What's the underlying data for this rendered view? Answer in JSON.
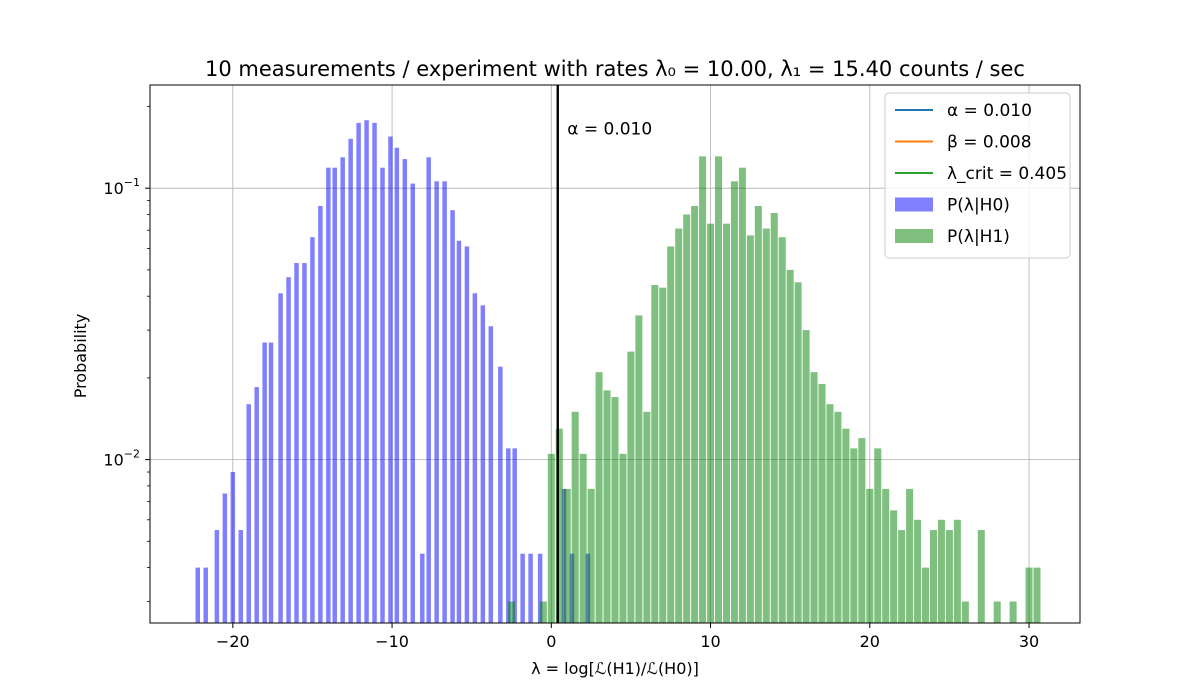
{
  "chart_data": {
    "type": "bar",
    "title": "10 measurements / experiment with rates λ₀ = 10.00, λ₁ = 15.40 counts / sec",
    "xlabel": "λ = log[ℒ(H1)/ℒ(H0)]",
    "ylabel": "Probability",
    "yscale": "log",
    "xlim": [
      -25.2,
      33.2
    ],
    "ylim": [
      0.0025,
      0.24
    ],
    "x_ticks": [
      {
        "value": -20,
        "label": "−20"
      },
      {
        "value": -10,
        "label": "−10"
      },
      {
        "value": 0,
        "label": "0"
      },
      {
        "value": 10,
        "label": "10"
      },
      {
        "value": 20,
        "label": "20"
      },
      {
        "value": 30,
        "label": "30"
      }
    ],
    "y_ticks": [
      {
        "value": 0.01,
        "base": "10",
        "exp": "−2"
      },
      {
        "value": 0.1,
        "base": "10",
        "exp": "−1"
      }
    ],
    "grid": true,
    "legend_position": "upper right",
    "legend": [
      {
        "label": "α = 0.010",
        "kind": "line",
        "color": "#1f77b4"
      },
      {
        "label": "β = 0.008",
        "kind": "line",
        "color": "#ff7f0e"
      },
      {
        "label": "λ_crit = 0.405",
        "kind": "line",
        "color": "#2ca02c"
      },
      {
        "label": "P(λ|H0)",
        "kind": "patch",
        "color": "#0000ff"
      },
      {
        "label": "P(λ|H1)",
        "kind": "patch",
        "color": "#008000"
      }
    ],
    "annotations": [
      {
        "text": "α = 0.010",
        "x": 0.5,
        "y": 0.155
      }
    ],
    "critical_line": {
      "x": 0.405,
      "color": "#000000"
    },
    "series": [
      {
        "name": "P(λ|H0)",
        "color": "#0000ff",
        "opacity": 0.5,
        "bar_width": 0.28,
        "points": [
          [
            -22.2,
            0.004
          ],
          [
            -21.7,
            0.004
          ],
          [
            -21.0,
            0.0055
          ],
          [
            -20.5,
            0.0075
          ],
          [
            -20.0,
            0.009
          ],
          [
            -19.5,
            0.0055
          ],
          [
            -19.0,
            0.016
          ],
          [
            -18.5,
            0.0185
          ],
          [
            -18.0,
            0.027
          ],
          [
            -17.6,
            0.027
          ],
          [
            -17.0,
            0.041
          ],
          [
            -16.5,
            0.047
          ],
          [
            -16.0,
            0.053
          ],
          [
            -15.5,
            0.053
          ],
          [
            -15.0,
            0.066
          ],
          [
            -14.5,
            0.086
          ],
          [
            -14.0,
            0.119
          ],
          [
            -13.6,
            0.119
          ],
          [
            -13.1,
            0.13
          ],
          [
            -12.6,
            0.152
          ],
          [
            -12.1,
            0.174
          ],
          [
            -11.6,
            0.178
          ],
          [
            -11.1,
            0.174
          ],
          [
            -10.6,
            0.119
          ],
          [
            -10.1,
            0.155
          ],
          [
            -9.7,
            0.141
          ],
          [
            -9.2,
            0.128
          ],
          [
            -8.7,
            0.104
          ],
          [
            -8.1,
            0.0045
          ],
          [
            -7.7,
            0.13
          ],
          [
            -7.2,
            0.106
          ],
          [
            -6.7,
            0.106
          ],
          [
            -6.2,
            0.083
          ],
          [
            -5.8,
            0.064
          ],
          [
            -5.3,
            0.061
          ],
          [
            -4.8,
            0.041
          ],
          [
            -4.3,
            0.037
          ],
          [
            -3.8,
            0.031
          ],
          [
            -3.2,
            0.022
          ],
          [
            -2.7,
            0.011
          ],
          [
            -2.3,
            0.011
          ],
          [
            -1.8,
            0.0045
          ],
          [
            -1.3,
            0.0045
          ],
          [
            -0.7,
            0.0045
          ],
          [
            0.8,
            0.0078
          ],
          [
            1.3,
            0.0045
          ],
          [
            2.3,
            0.0045
          ]
        ]
      },
      {
        "name": "P(λ|H1)",
        "color": "#008000",
        "opacity": 0.5,
        "bar_width": 0.44,
        "points": [
          [
            -2.5,
            0.003
          ],
          [
            -0.5,
            0.003
          ],
          [
            0.0,
            0.0105
          ],
          [
            0.5,
            0.013
          ],
          [
            1.0,
            0.0078
          ],
          [
            1.5,
            0.015
          ],
          [
            2.0,
            0.0105
          ],
          [
            2.5,
            0.0078
          ],
          [
            3.0,
            0.021
          ],
          [
            3.5,
            0.018
          ],
          [
            4.0,
            0.017
          ],
          [
            4.5,
            0.0105
          ],
          [
            5.0,
            0.025
          ],
          [
            5.5,
            0.034
          ],
          [
            6.0,
            0.015
          ],
          [
            6.5,
            0.044
          ],
          [
            7.0,
            0.043
          ],
          [
            7.5,
            0.061
          ],
          [
            8.0,
            0.071
          ],
          [
            8.5,
            0.08
          ],
          [
            9.0,
            0.086
          ],
          [
            9.5,
            0.131
          ],
          [
            10.0,
            0.074
          ],
          [
            10.5,
            0.131
          ],
          [
            11.0,
            0.074
          ],
          [
            11.5,
            0.106
          ],
          [
            12.0,
            0.119
          ],
          [
            12.5,
            0.067
          ],
          [
            13.0,
            0.086
          ],
          [
            13.5,
            0.071
          ],
          [
            14.0,
            0.081
          ],
          [
            14.5,
            0.066
          ],
          [
            15.0,
            0.05
          ],
          [
            15.5,
            0.045
          ],
          [
            16.0,
            0.03
          ],
          [
            16.5,
            0.021
          ],
          [
            17.0,
            0.019
          ],
          [
            17.5,
            0.016
          ],
          [
            18.0,
            0.015
          ],
          [
            18.5,
            0.013
          ],
          [
            19.0,
            0.011
          ],
          [
            19.5,
            0.012
          ],
          [
            20.0,
            0.0078
          ],
          [
            20.5,
            0.011
          ],
          [
            21.0,
            0.0078
          ],
          [
            21.5,
            0.0065
          ],
          [
            22.0,
            0.0055
          ],
          [
            22.5,
            0.0078
          ],
          [
            23.0,
            0.006
          ],
          [
            23.5,
            0.004
          ],
          [
            24.0,
            0.0055
          ],
          [
            24.5,
            0.006
          ],
          [
            25.0,
            0.0055
          ],
          [
            25.5,
            0.006
          ],
          [
            26.0,
            0.003
          ],
          [
            27.0,
            0.0055
          ],
          [
            28.0,
            0.003
          ],
          [
            29.0,
            0.003
          ],
          [
            30.0,
            0.004
          ],
          [
            30.5,
            0.004
          ]
        ]
      }
    ]
  }
}
